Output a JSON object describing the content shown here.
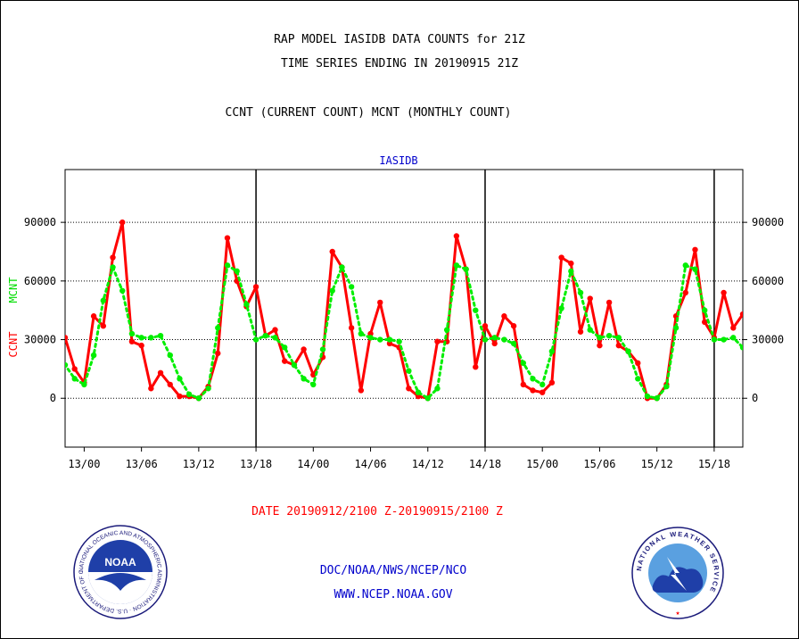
{
  "header": {
    "title_line1": "RAP MODEL IASIDB DATA COUNTS for 21Z",
    "title_line2": "TIME SERIES ENDING IN 20190915 21Z",
    "title_line3": "CCNT (CURRENT COUNT) MCNT (MONTHLY COUNT)"
  },
  "footer": {
    "date_range": "DATE 20190912/2100 Z-20190915/2100 Z",
    "credit": "DOC/NOAA/NWS/NCEP/NCO",
    "url": "WWW.NCEP.NOAA.GOV"
  },
  "logos": {
    "noaa": "NOAA",
    "noaa_ring": "NATIONAL OCEANIC AND ATMOSPHERIC ADMINISTRATION · U.S. DEPARTMENT OF COMMERCE ·",
    "nws_ring": "NATIONAL WEATHER SERVICE"
  },
  "chart_data": {
    "type": "line",
    "title": "IASIDB",
    "ylabel_left_1": "CCNT",
    "ylabel_left_2": "MCNT",
    "ylim": [
      -25000,
      117000
    ],
    "xlim": [
      -2,
      69
    ],
    "yticks": [
      0,
      30000,
      60000,
      90000
    ],
    "ytick_labels": [
      "0",
      "30000",
      "60000",
      "90000"
    ],
    "xticks": [
      0,
      6,
      12,
      18,
      24,
      30,
      36,
      42,
      48,
      54,
      60,
      66
    ],
    "xtick_labels": [
      "13/00",
      "13/06",
      "13/12",
      "13/18",
      "14/00",
      "14/06",
      "14/12",
      "14/18",
      "15/00",
      "15/06",
      "15/12",
      "15/18"
    ],
    "day_separators": [
      18,
      42,
      66
    ],
    "grid": true,
    "x": [
      -3,
      -2,
      -1,
      0,
      1,
      2,
      3,
      4,
      5,
      6,
      7,
      8,
      9,
      10,
      11,
      12,
      13,
      14,
      15,
      16,
      17,
      18,
      19,
      20,
      21,
      22,
      23,
      24,
      25,
      26,
      27,
      28,
      29,
      30,
      31,
      32,
      33,
      34,
      35,
      36,
      37,
      38,
      39,
      40,
      41,
      42,
      43,
      44,
      45,
      46,
      47,
      48,
      49,
      50,
      51,
      52,
      53,
      54,
      55,
      56,
      57,
      58,
      59,
      60,
      61,
      62,
      63,
      64,
      65,
      66,
      67,
      68,
      69
    ],
    "series": [
      {
        "name": "CCNT",
        "color": "#ff0000",
        "style": "solid",
        "values": [
          26000,
          31000,
          15000,
          8000,
          42000,
          37000,
          72000,
          90000,
          29000,
          27000,
          5000,
          13000,
          7000,
          1000,
          1000,
          0,
          6000,
          23000,
          82000,
          60000,
          47000,
          57000,
          32000,
          35000,
          19000,
          17000,
          25000,
          12000,
          21000,
          75000,
          67000,
          36000,
          4000,
          33000,
          49000,
          28000,
          26000,
          5000,
          1000,
          0,
          29000,
          29000,
          83000,
          66000,
          16000,
          37000,
          28000,
          42000,
          37000,
          7000,
          4000,
          3000,
          8000,
          72000,
          69000,
          34000,
          51000,
          27000,
          49000,
          27000,
          24000,
          18000,
          0,
          0,
          7000,
          42000,
          54000,
          76000,
          39000,
          31000,
          54000,
          36000,
          43000
        ]
      },
      {
        "name": "MCNT",
        "color": "#00ee00",
        "style": "dotted",
        "values": [
          26000,
          17000,
          10000,
          7000,
          22000,
          50000,
          67000,
          55000,
          33000,
          31000,
          31000,
          32000,
          22000,
          10000,
          2000,
          0,
          5000,
          36000,
          68000,
          65000,
          48000,
          30000,
          32000,
          31000,
          26000,
          17000,
          10000,
          7000,
          25000,
          55000,
          67000,
          57000,
          33000,
          31000,
          30000,
          30000,
          29000,
          14000,
          3000,
          0,
          5000,
          35000,
          68000,
          66000,
          45000,
          30000,
          31000,
          30000,
          28000,
          18000,
          10000,
          7000,
          24000,
          46000,
          65000,
          54000,
          35000,
          31000,
          32000,
          31000,
          24000,
          10000,
          1000,
          0,
          6000,
          36000,
          68000,
          66000,
          45000,
          30000,
          30000,
          31000,
          26000
        ]
      }
    ]
  }
}
